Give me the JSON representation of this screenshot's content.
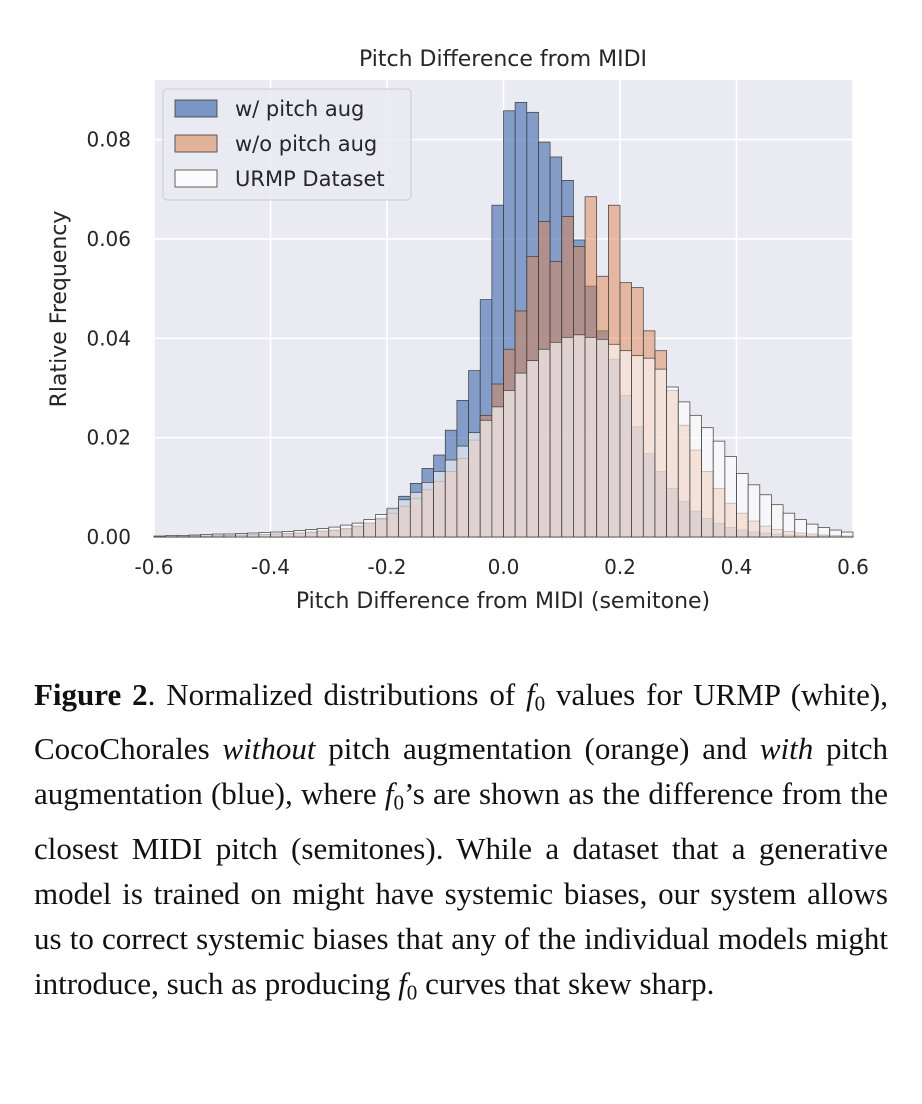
{
  "chart_data": {
    "type": "bar",
    "title": "Pitch Difference from MIDI",
    "xlabel": "Pitch Difference from MIDI (semitone)",
    "ylabel": "Rlative Frequency",
    "xlim": [
      -0.6,
      0.6
    ],
    "ylim": [
      0.0,
      0.092
    ],
    "xticks": [
      -0.6,
      -0.4,
      -0.2,
      0.0,
      0.2,
      0.4,
      0.6
    ],
    "xtick_labels": [
      "-0.6",
      "-0.4",
      "-0.2",
      "0.0",
      "0.2",
      "0.4",
      "0.6"
    ],
    "yticks": [
      0.0,
      0.02,
      0.04,
      0.06,
      0.08
    ],
    "ytick_labels": [
      "0.00",
      "0.02",
      "0.04",
      "0.06",
      "0.08"
    ],
    "grid": true,
    "legend_position": "top-left",
    "bin_width": 0.02,
    "x": [
      -0.59,
      -0.57,
      -0.55,
      -0.53,
      -0.51,
      -0.49,
      -0.47,
      -0.45,
      -0.43,
      -0.41,
      -0.39,
      -0.37,
      -0.35,
      -0.33,
      -0.31,
      -0.29,
      -0.27,
      -0.25,
      -0.23,
      -0.21,
      -0.19,
      -0.17,
      -0.15,
      -0.13,
      -0.11,
      -0.09,
      -0.07,
      -0.05,
      -0.03,
      -0.01,
      0.01,
      0.03,
      0.05,
      0.07,
      0.09,
      0.11,
      0.13,
      0.15,
      0.17,
      0.19,
      0.21,
      0.23,
      0.25,
      0.27,
      0.29,
      0.31,
      0.33,
      0.35,
      0.37,
      0.39,
      0.41,
      0.43,
      0.45,
      0.47,
      0.49,
      0.51,
      0.53,
      0.55,
      0.57,
      0.59
    ],
    "series": [
      {
        "name": "URMP Dataset",
        "values": [
          0.0002,
          0.0003,
          0.0003,
          0.0004,
          0.0005,
          0.0006,
          0.0006,
          0.0007,
          0.0008,
          0.0009,
          0.001,
          0.0011,
          0.0013,
          0.0015,
          0.0017,
          0.002,
          0.0024,
          0.0028,
          0.0035,
          0.0045,
          0.0058,
          0.0075,
          0.009,
          0.011,
          0.0132,
          0.0155,
          0.0183,
          0.021,
          0.0235,
          0.0262,
          0.0295,
          0.033,
          0.0355,
          0.0378,
          0.0392,
          0.0402,
          0.0407,
          0.0402,
          0.0398,
          0.0388,
          0.0375,
          0.0365,
          0.036,
          0.0338,
          0.0302,
          0.0272,
          0.0245,
          0.022,
          0.0193,
          0.0162,
          0.0128,
          0.0105,
          0.0085,
          0.0065,
          0.0048,
          0.0035,
          0.0026,
          0.0019,
          0.0014,
          0.001
        ]
      },
      {
        "name": "w/o pitch aug",
        "values": [
          0.0001,
          0.0001,
          0.0001,
          0.0002,
          0.0002,
          0.0003,
          0.0003,
          0.0004,
          0.0005,
          0.0005,
          0.0006,
          0.0007,
          0.0008,
          0.001,
          0.0012,
          0.0014,
          0.0017,
          0.0022,
          0.0028,
          0.0036,
          0.0048,
          0.0062,
          0.0078,
          0.0095,
          0.0112,
          0.0132,
          0.0158,
          0.0195,
          0.0245,
          0.0308,
          0.0378,
          0.0455,
          0.0565,
          0.0635,
          0.0555,
          0.0645,
          0.0585,
          0.0685,
          0.0525,
          0.0668,
          0.0512,
          0.0502,
          0.0415,
          0.0375,
          0.0295,
          0.0225,
          0.0175,
          0.0132,
          0.0098,
          0.0068,
          0.0048,
          0.0032,
          0.0022,
          0.0015,
          0.0011,
          0.0008,
          0.0006,
          0.0004,
          0.0003,
          0.0002
        ]
      },
      {
        "name": "w/ pitch aug",
        "values": [
          0.0001,
          0.0001,
          0.0001,
          0.0002,
          0.0002,
          0.0002,
          0.0003,
          0.0003,
          0.0004,
          0.0005,
          0.0006,
          0.0007,
          0.0008,
          0.0009,
          0.0011,
          0.0013,
          0.0016,
          0.0021,
          0.0028,
          0.0038,
          0.0055,
          0.0082,
          0.0108,
          0.0138,
          0.0165,
          0.0215,
          0.0275,
          0.0335,
          0.0478,
          0.0668,
          0.0858,
          0.0875,
          0.0855,
          0.0795,
          0.0765,
          0.0718,
          0.0598,
          0.0505,
          0.0415,
          0.0358,
          0.0285,
          0.0222,
          0.0168,
          0.0132,
          0.0098,
          0.0072,
          0.0052,
          0.0037,
          0.0027,
          0.0019,
          0.0014,
          0.001,
          0.0008,
          0.0006,
          0.0004,
          0.0003,
          0.0002,
          0.0002,
          0.0001,
          0.0001
        ]
      }
    ]
  },
  "colors": {
    "urmp_fill": "#eaeaf2",
    "wo_aug_fill": "#dd8452",
    "w_aug_fill": "#4c72b0",
    "edge": "#3a3a3a",
    "plot_bg": "#eaeaf2",
    "grid": "#ffffff"
  },
  "caption": {
    "label": "Figure 2",
    "p1": ". Normalized distributions of ",
    "var1": "f",
    "sub1": "0",
    "p2": " values for URMP (white), CocoChorales ",
    "em1": "without",
    "p3": " pitch augmentation (orange) and ",
    "em2": "with",
    "p4": " pitch augmentation (blue), where ",
    "var2": "f",
    "sub2": "0",
    "p5": "’s are shown as the difference from the closest MIDI pitch (semitones). While a dataset that a generative model is trained on might have systemic biases, our system allows us to correct systemic biases that any of the individual models might introduce, such as producing ",
    "var3": "f",
    "sub3": "0",
    "p6": " curves that skew sharp."
  }
}
